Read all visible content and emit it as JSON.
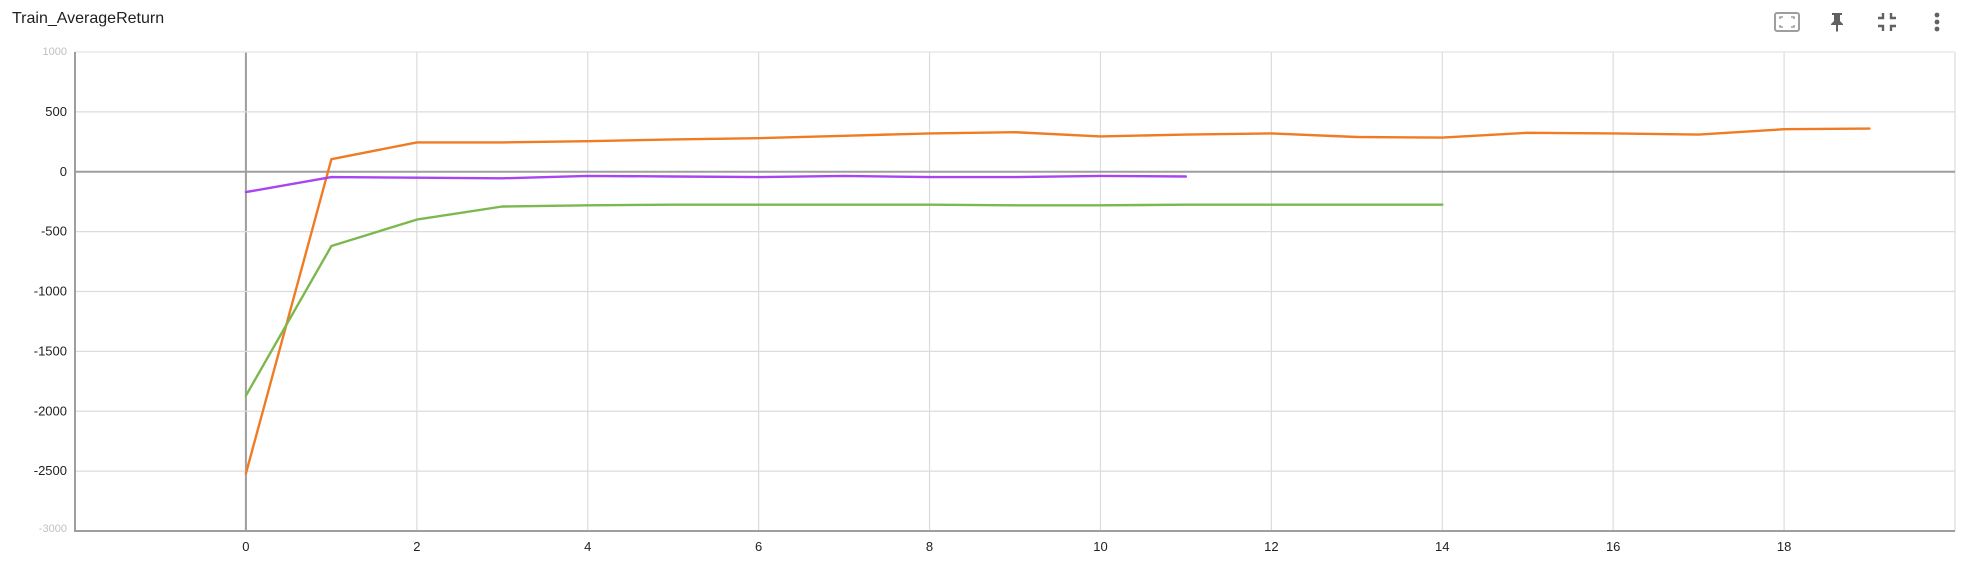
{
  "title": "Train_AverageReturn",
  "toolbar": {
    "icons": [
      "fit-domain-icon",
      "pin-icon",
      "collapse-icon",
      "more-vert-icon"
    ]
  },
  "chart_data": {
    "type": "line",
    "title": "Train_AverageReturn",
    "xlabel": "",
    "ylabel": "",
    "xlim": [
      -2,
      20
    ],
    "ylim": [
      -3000,
      1000
    ],
    "x_ticks": [
      0,
      2,
      4,
      6,
      8,
      10,
      12,
      14,
      16,
      18
    ],
    "y_ticks": [
      -2500,
      -2000,
      -1500,
      -1000,
      -500,
      0,
      500
    ],
    "y_tick_labels": [
      "-2500",
      "-2000",
      "-1500",
      "-1000",
      "-500",
      "0",
      "500"
    ],
    "faded_tick_labels": [
      "1000",
      "-3000"
    ],
    "grid": true,
    "series": [
      {
        "color": "#ef7c24",
        "x": [
          0,
          1,
          2,
          3,
          4,
          5,
          6,
          7,
          8,
          9,
          10,
          11,
          12,
          13,
          14,
          15,
          16,
          17,
          18,
          19
        ],
        "values": [
          -2520,
          105,
          245,
          245,
          255,
          270,
          280,
          300,
          320,
          330,
          295,
          310,
          320,
          290,
          285,
          325,
          320,
          310,
          355,
          360
        ]
      },
      {
        "color": "#a945f0",
        "x": [
          0,
          1,
          2,
          3,
          4,
          5,
          6,
          7,
          8,
          9,
          10,
          11
        ],
        "values": [
          -170,
          -45,
          -50,
          -55,
          -35,
          -40,
          -45,
          -35,
          -45,
          -45,
          -35,
          -40
        ]
      },
      {
        "color": "#7cb84e",
        "x": [
          0,
          1,
          2,
          3,
          4,
          5,
          6,
          7,
          8,
          9,
          10,
          11,
          12,
          13,
          14
        ],
        "values": [
          -1870,
          -620,
          -400,
          -290,
          -280,
          -275,
          -275,
          -275,
          -275,
          -280,
          -280,
          -275,
          -275,
          -275,
          -275
        ]
      }
    ]
  }
}
